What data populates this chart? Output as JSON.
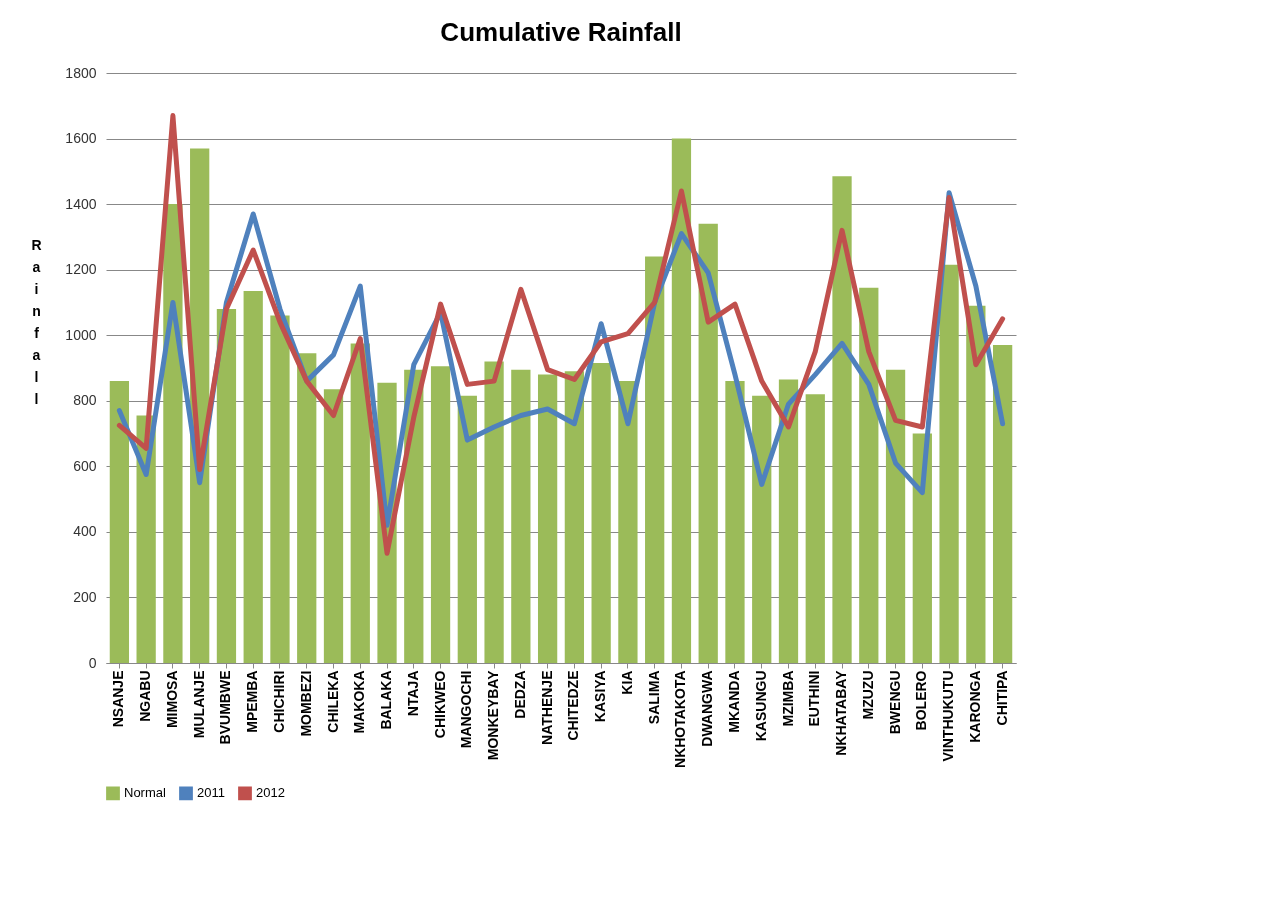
{
  "chart_data": {
    "type": "bar",
    "title": "Cumulative Rainfall",
    "ylabel": "Rainfall",
    "categories": [
      "NSANJE",
      "NGABU",
      "MIMOSA",
      "MULANJE",
      "BVUMBWE",
      "MPEMBA",
      "CHICHIRI",
      "MOMBEZI",
      "CHILEKA",
      "MAKOKA",
      "BALAKA",
      "NTAJA",
      "CHIKWEO",
      "MANGOCHI",
      "MONKEYBAY",
      "DEDZA",
      "NATHENJE",
      "CHITEDZE",
      "KASIYA",
      "KIA",
      "SALIMA",
      "NKHOTAKOTA",
      "DWANGWA",
      "MKANDA",
      "KASUNGU",
      "MZIMBA",
      "EUTHINI",
      "NKHATABAY",
      "MZUZU",
      "BWENGU",
      "BOLERO",
      "VINTHUKUTU",
      "KARONGA",
      "CHITIPA"
    ],
    "series": [
      {
        "name": "Normal",
        "color": "#9bbb59",
        "values": [
          860,
          755,
          1400,
          1570,
          1080,
          1135,
          1060,
          945,
          835,
          975,
          855,
          895,
          905,
          815,
          920,
          895,
          880,
          890,
          915,
          860,
          1240,
          1600,
          1340,
          860,
          815,
          865,
          820,
          1485,
          1145,
          895,
          700,
          1215,
          1090,
          970
        ]
      },
      {
        "name": "2011",
        "type": "line",
        "color": "#4f81bd",
        "values": [
          770,
          575,
          1100,
          550,
          1100,
          1370,
          1080,
          860,
          940,
          1150,
          420,
          910,
          1070,
          680,
          720,
          755,
          775,
          730,
          1035,
          730,
          1100,
          1310,
          1190,
          880,
          545,
          790,
          880,
          975,
          850,
          610,
          520,
          1435,
          1150,
          730
        ]
      },
      {
        "name": "2012",
        "type": "line",
        "color": "#c0504d",
        "values": [
          725,
          655,
          1670,
          590,
          1080,
          1260,
          1040,
          860,
          755,
          990,
          335,
          750,
          1095,
          850,
          860,
          1140,
          895,
          865,
          980,
          1005,
          1100,
          1440,
          1040,
          1095,
          860,
          720,
          950,
          1320,
          950,
          740,
          720,
          1420,
          910,
          1050
        ]
      }
    ],
    "ylim": [
      0,
      1800
    ],
    "yticks": [
      0,
      200,
      400,
      600,
      800,
      1000,
      1200,
      1400,
      1600,
      1800
    ],
    "grid": "y",
    "legend": "bottom",
    "marker": "none",
    "line_style": "solid"
  }
}
